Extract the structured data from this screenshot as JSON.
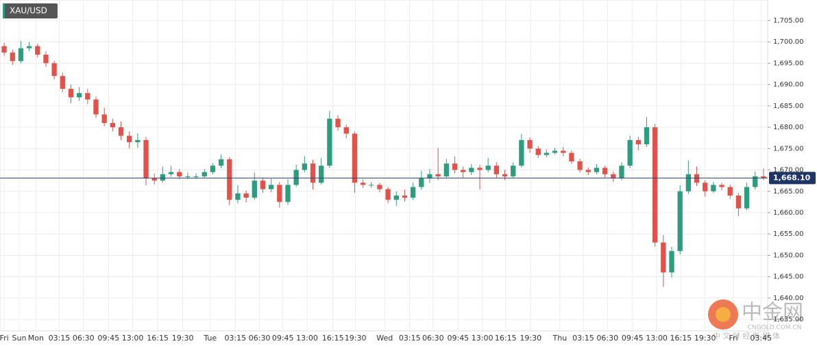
{
  "chart_data": {
    "type": "candlestick",
    "symbol": "XAU/USD",
    "up_color": "#2e9c7f",
    "down_color": "#e0524a",
    "grid": true,
    "ylim": [
      1632.3,
      1709.8
    ],
    "yticks": [
      {
        "value": 1635,
        "label": "1,635.00"
      },
      {
        "value": 1640,
        "label": "1,640.00"
      },
      {
        "value": 1645,
        "label": "1,645.00"
      },
      {
        "value": 1650,
        "label": "1,650.00"
      },
      {
        "value": 1655,
        "label": "1,655.00"
      },
      {
        "value": 1660,
        "label": "1,660.00"
      },
      {
        "value": 1665,
        "label": "1,665.00"
      },
      {
        "value": 1670,
        "label": "1,670.00"
      },
      {
        "value": 1675,
        "label": "1,675.00"
      },
      {
        "value": 1680,
        "label": "1,680.00"
      },
      {
        "value": 1685,
        "label": "1,685.00"
      },
      {
        "value": 1690,
        "label": "1,690.00"
      },
      {
        "value": 1695,
        "label": "1,695.00"
      },
      {
        "value": 1700,
        "label": "1,700.00"
      },
      {
        "value": 1705,
        "label": "1,705.00"
      }
    ],
    "xlim": [
      0,
      92
    ],
    "xticks": [
      {
        "value": 0.5,
        "label": "Fri"
      },
      {
        "value": 2.3,
        "label": "Sun"
      },
      {
        "value": 4.3,
        "label": "Mon"
      },
      {
        "value": 7.1,
        "label": "03:15"
      },
      {
        "value": 10,
        "label": "06:30"
      },
      {
        "value": 13,
        "label": "09:45"
      },
      {
        "value": 15.9,
        "label": "13:00"
      },
      {
        "value": 18.9,
        "label": "16:15"
      },
      {
        "value": 21.9,
        "label": "19:30"
      },
      {
        "value": 25.2,
        "label": "Tue"
      },
      {
        "value": 28.2,
        "label": "03:15"
      },
      {
        "value": 31.1,
        "label": "06:30"
      },
      {
        "value": 33.9,
        "label": "09:45"
      },
      {
        "value": 36.8,
        "label": "13:00"
      },
      {
        "value": 39.9,
        "label": "16:15"
      },
      {
        "value": 42.6,
        "label": "19:30"
      },
      {
        "value": 46.1,
        "label": "Wed"
      },
      {
        "value": 49.1,
        "label": "03:15"
      },
      {
        "value": 51.9,
        "label": "06:30"
      },
      {
        "value": 54.9,
        "label": "09:45"
      },
      {
        "value": 57.8,
        "label": "13:00"
      },
      {
        "value": 60.6,
        "label": "16:15"
      },
      {
        "value": 63.6,
        "label": "19:30"
      },
      {
        "value": 67.1,
        "label": "Thu"
      },
      {
        "value": 69.9,
        "label": "03:15"
      },
      {
        "value": 72.8,
        "label": "06:30"
      },
      {
        "value": 75.8,
        "label": "09:45"
      },
      {
        "value": 78.7,
        "label": "13:00"
      },
      {
        "value": 81.6,
        "label": "16:15"
      },
      {
        "value": 84.5,
        "label": "19:30"
      },
      {
        "value": 87.9,
        "label": "Fri"
      },
      {
        "value": 91.2,
        "label": "03:45"
      }
    ],
    "open": [
      1699,
      1697.5,
      1695.5,
      1698.5,
      1699,
      1697,
      1695,
      1692,
      1689,
      1687,
      1688,
      1686.5,
      1683,
      1681,
      1680,
      1678,
      1676.5,
      1677,
      1668,
      1667.5,
      1669,
      1669.5,
      1668.5,
      1668.5,
      1668.5,
      1669.5,
      1671,
      1672.5,
      1663,
      1664.5,
      1663.5,
      1667.5,
      1665.5,
      1666.5,
      1662.5,
      1666.5,
      1670,
      1671.5,
      1667,
      1671,
      1682,
      1680,
      1678.5,
      1667,
      1666.5,
      1666.5,
      1665.5,
      1663,
      1664,
      1663.5,
      1666,
      1668,
      1669,
      1668.5,
      1671.5,
      1670,
      1669.5,
      1670.5,
      1670,
      1671,
      1669,
      1668.5,
      1671,
      1677,
      1675,
      1673.5,
      1674,
      1674.5,
      1674,
      1672,
      1670,
      1669.5,
      1670.5,
      1669,
      1668,
      1671,
      1677,
      1676,
      1680,
      1653,
      1646,
      1651,
      1665,
      1669,
      1667,
      1665,
      1666.5,
      1666,
      1664,
      1661,
      1666,
      1668.5
    ],
    "high": [
      1699.8,
      1698.2,
      1700.2,
      1700,
      1699.6,
      1697.8,
      1695.6,
      1692.8,
      1690,
      1689.4,
      1689,
      1687.2,
      1684.6,
      1682,
      1681.4,
      1679,
      1678.6,
      1677.8,
      1669.2,
      1670.8,
      1671,
      1670.2,
      1669.4,
      1669.2,
      1670.2,
      1671.6,
      1673.6,
      1673,
      1666.4,
      1665.2,
      1669.4,
      1668.2,
      1668,
      1667.2,
      1667.8,
      1671.2,
      1673.2,
      1672.4,
      1672.8,
      1683.8,
      1682.8,
      1680.6,
      1679,
      1667.8,
      1667.2,
      1667,
      1666,
      1665,
      1665.4,
      1667,
      1669.8,
      1670.2,
      1675.2,
      1672.6,
      1673.2,
      1670.8,
      1671.4,
      1671.2,
      1672.8,
      1671.8,
      1670,
      1671.8,
      1678.4,
      1677.6,
      1675.6,
      1674.8,
      1675.2,
      1675.4,
      1674.6,
      1672.6,
      1670.6,
      1671.4,
      1671,
      1669.6,
      1671.8,
      1678,
      1677.8,
      1682.4,
      1680.8,
      1654.8,
      1652,
      1666.4,
      1672.2,
      1670.8,
      1667.6,
      1667.2,
      1667,
      1666.6,
      1664.6,
      1667,
      1669.6,
      1670.4
    ],
    "low": [
      1696.8,
      1694.6,
      1695,
      1697.8,
      1696.4,
      1694.2,
      1691.2,
      1688.2,
      1685.6,
      1686.2,
      1685.4,
      1682.2,
      1680.2,
      1679,
      1677,
      1675,
      1675.2,
      1666.4,
      1666.6,
      1667,
      1668.4,
      1667.8,
      1667.8,
      1667.9,
      1668,
      1669,
      1670.4,
      1661.8,
      1662.2,
      1662.4,
      1663,
      1664.6,
      1664.8,
      1661.2,
      1661.8,
      1666,
      1669.4,
      1665.4,
      1666.6,
      1670.4,
      1679.2,
      1677.4,
      1664.6,
      1665.8,
      1665.8,
      1664.8,
      1662.2,
      1661.6,
      1662.6,
      1663,
      1665.4,
      1667,
      1667.6,
      1668,
      1669.2,
      1668.2,
      1668.8,
      1665.4,
      1669.4,
      1668.2,
      1667.6,
      1668,
      1670.6,
      1674,
      1672.8,
      1673,
      1673.6,
      1673.2,
      1671.4,
      1669.4,
      1668.8,
      1669,
      1668.2,
      1667.2,
      1667.6,
      1670.4,
      1674.6,
      1675.4,
      1652,
      1642.6,
      1644.8,
      1650.2,
      1664.4,
      1666.2,
      1663.8,
      1664.6,
      1665.2,
      1663.2,
      1659.2,
      1660.6,
      1665.4,
      1667.6
    ],
    "close": [
      1697.5,
      1695.5,
      1698.5,
      1699,
      1697,
      1695,
      1692,
      1689,
      1687,
      1688,
      1686.5,
      1683,
      1681,
      1680,
      1678,
      1676.5,
      1677,
      1668,
      1667.5,
      1669,
      1669.5,
      1668.5,
      1668.5,
      1668.5,
      1669.5,
      1671,
      1672.5,
      1663,
      1664.5,
      1663.5,
      1667.5,
      1665.5,
      1666.5,
      1662.5,
      1666.5,
      1670,
      1671.5,
      1667,
      1671,
      1682,
      1680,
      1678.5,
      1667,
      1666.5,
      1666.5,
      1665.5,
      1663,
      1664,
      1663.5,
      1666,
      1668,
      1669,
      1668.5,
      1671.5,
      1670,
      1669.5,
      1670.5,
      1670,
      1671,
      1669,
      1668.5,
      1671,
      1677,
      1675,
      1673.5,
      1674,
      1674.5,
      1674,
      1672,
      1670,
      1669.5,
      1670.5,
      1669,
      1668,
      1671,
      1677,
      1676,
      1680,
      1653,
      1646,
      1651,
      1665,
      1669,
      1667,
      1665,
      1666.5,
      1666,
      1664,
      1661,
      1666,
      1668.5,
      1668.1
    ],
    "last_price": {
      "value": 1668.1,
      "label": "1,668.10"
    },
    "watermark": {
      "title": "中金网",
      "domain": "CNGOLD.COM.CN",
      "slogan": "中 文 财 经 新 媒 体"
    }
  }
}
